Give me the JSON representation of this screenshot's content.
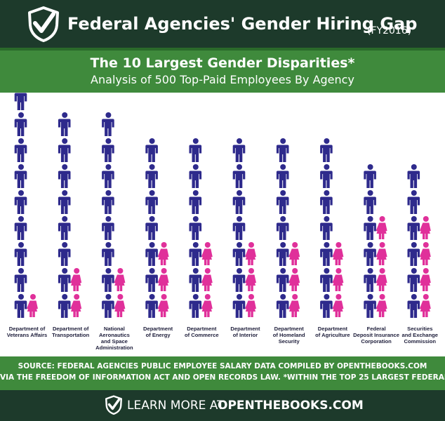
{
  "header": {
    "title": "Federal Agencies' Gender Hiring Gap",
    "title_suffix": "(FY2016)"
  },
  "footer": {
    "source_line1": "SOURCE: FEDERAL AGENCIES PUBLIC EMPLOYEE SALARY DATA COMPILED BY OPENTHEBOOKS.COM",
    "source_line2": "VIA THE FREEDOM OF INFORMATION ACT AND OPEN RECORDS LAW. *WITHIN THE TOP 25 LARGEST FEDERAL AGENCIES.",
    "cta_prefix": "LEARN MORE AT",
    "cta_link": "OPENTHEBOOKS.COM"
  },
  "colors": {
    "header_bg": "#1d3a2b",
    "band_green": "#3f8a3c",
    "male": "#2e2a8c",
    "female": "#e0309a"
  },
  "icons": {
    "logo": "shield-check-icon",
    "male": "male-person-icon",
    "female": "female-person-icon"
  },
  "chart_data": {
    "type": "pictogram",
    "title": "The 10 Largest Gender Disparities*",
    "subtitle": "Analysis of 500 Top-Paid Employees By Agency",
    "xlabel": "",
    "ylabel": "",
    "unit_note": "",
    "categories": [
      "Department of Veterans Affairs",
      "Department of Transportation",
      "National Aeronautics and Space Administration",
      "Department of Energy",
      "Department of Commerce",
      "Department of Interior",
      "Department of Homeland Security",
      "Department of Agriculture",
      "Federal Deposit Insurance Corporation",
      "Securities and Exchange Commission"
    ],
    "label_lines": [
      [
        "Department of",
        "Veterans Affairs"
      ],
      [
        "Department of",
        "Transportation"
      ],
      [
        "National",
        "Aeronautics",
        "and Space",
        "Administration"
      ],
      [
        "Department",
        "of Energy"
      ],
      [
        "Department",
        "of Commerce"
      ],
      [
        "Department",
        "of Interior"
      ],
      [
        "Department",
        "of Homeland",
        "Security"
      ],
      [
        "Department",
        "of Agriculture"
      ],
      [
        "Federal",
        "Deposit Insurance",
        "Corporation"
      ],
      [
        "Securities",
        "and Exchange",
        "Commission"
      ]
    ],
    "series": [
      {
        "name": "Men",
        "color": "#2e2a8c",
        "values": [
          9,
          8,
          8,
          7,
          7,
          7,
          7,
          7,
          6,
          6
        ]
      },
      {
        "name": "Women",
        "color": "#e0309a",
        "values": [
          1,
          2,
          2,
          3,
          3,
          3,
          3,
          3,
          4,
          4
        ]
      }
    ]
  }
}
